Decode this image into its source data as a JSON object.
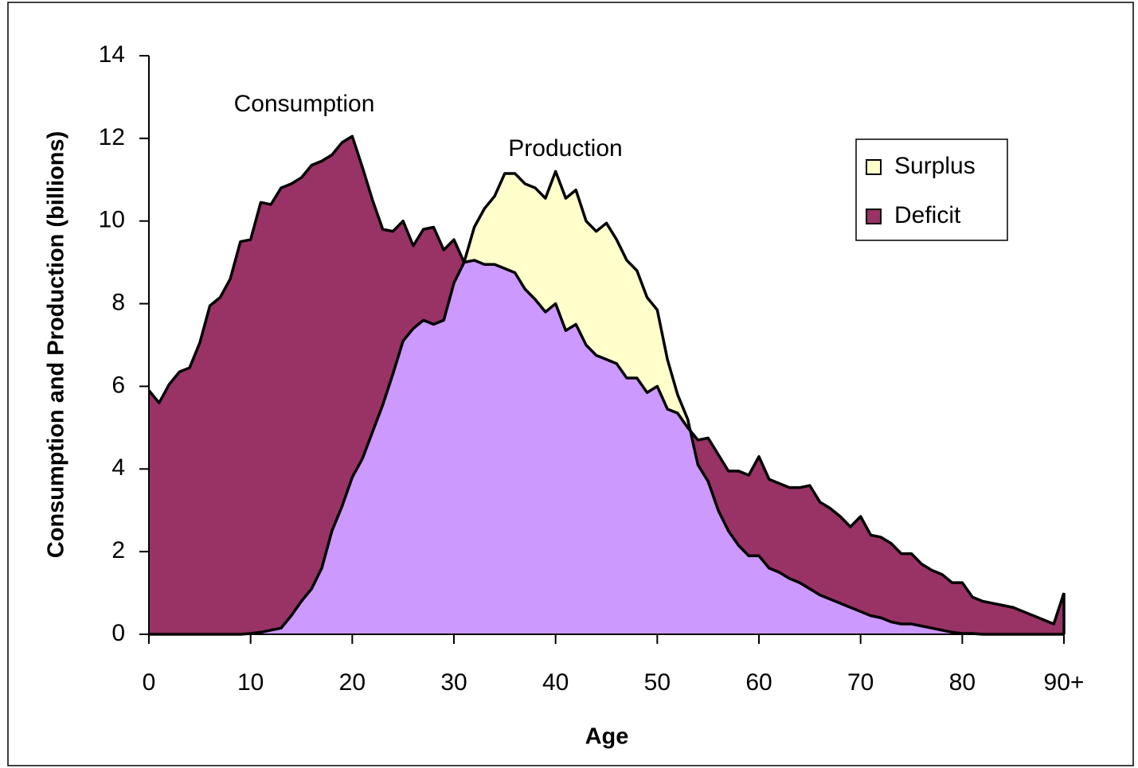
{
  "chart_data": {
    "type": "area",
    "x_label": "Age",
    "y_label": "Consumption and Production (billions)",
    "x": [
      0,
      1,
      2,
      3,
      4,
      5,
      6,
      7,
      8,
      9,
      10,
      11,
      12,
      13,
      14,
      15,
      16,
      17,
      18,
      19,
      20,
      21,
      22,
      23,
      24,
      25,
      26,
      27,
      28,
      29,
      30,
      31,
      32,
      33,
      34,
      35,
      36,
      37,
      38,
      39,
      40,
      41,
      42,
      43,
      44,
      45,
      46,
      47,
      48,
      49,
      50,
      51,
      52,
      53,
      54,
      55,
      56,
      57,
      58,
      59,
      60,
      61,
      62,
      63,
      64,
      65,
      66,
      67,
      68,
      69,
      70,
      71,
      72,
      73,
      74,
      75,
      76,
      77,
      78,
      79,
      80,
      81,
      82,
      83,
      84,
      85,
      86,
      87,
      88,
      89,
      90
    ],
    "series": [
      {
        "name": "Consumption",
        "color": "#000000",
        "values": [
          5.9,
          5.6,
          6.05,
          6.35,
          6.45,
          7.05,
          7.95,
          8.15,
          8.6,
          9.5,
          9.55,
          10.45,
          10.4,
          10.8,
          10.9,
          11.05,
          11.35,
          11.45,
          11.6,
          11.9,
          12.05,
          11.3,
          10.5,
          9.8,
          9.75,
          10.0,
          9.4,
          9.8,
          9.85,
          9.3,
          9.55,
          9.0,
          9.05,
          8.95,
          8.95,
          8.85,
          8.75,
          8.35,
          8.1,
          7.8,
          8.0,
          7.35,
          7.5,
          7.0,
          6.75,
          6.65,
          6.55,
          6.2,
          6.2,
          5.85,
          6.0,
          5.45,
          5.35,
          5.0,
          4.7,
          4.75,
          4.35,
          3.95,
          3.95,
          3.85,
          4.3,
          3.75,
          3.65,
          3.55,
          3.55,
          3.6,
          3.2,
          3.05,
          2.85,
          2.6,
          2.85,
          2.4,
          2.35,
          2.2,
          1.95,
          1.95,
          1.7,
          1.55,
          1.45,
          1.25,
          1.25,
          0.9,
          0.8,
          0.75,
          0.7,
          0.65,
          0.55,
          0.45,
          0.35,
          0.25,
          1.0
        ]
      },
      {
        "name": "Production",
        "color": "#000000",
        "values": [
          0,
          0,
          0,
          0,
          0,
          0,
          0,
          0,
          0,
          0,
          0.02,
          0.05,
          0.1,
          0.15,
          0.45,
          0.8,
          1.1,
          1.6,
          2.5,
          3.1,
          3.8,
          4.25,
          4.9,
          5.55,
          6.3,
          7.1,
          7.4,
          7.6,
          7.5,
          7.6,
          8.5,
          9.0,
          9.85,
          10.3,
          10.6,
          11.15,
          11.15,
          10.9,
          10.8,
          10.55,
          11.2,
          10.55,
          10.75,
          10.0,
          9.75,
          9.95,
          9.55,
          9.05,
          8.8,
          8.15,
          7.85,
          6.65,
          5.8,
          5.2,
          4.1,
          3.7,
          3.0,
          2.5,
          2.15,
          1.9,
          1.9,
          1.6,
          1.5,
          1.35,
          1.25,
          1.1,
          0.95,
          0.85,
          0.75,
          0.65,
          0.55,
          0.45,
          0.4,
          0.3,
          0.25,
          0.25,
          0.2,
          0.15,
          0.1,
          0.05,
          0.02,
          0.02,
          0,
          0,
          0,
          0,
          0,
          0,
          0,
          0,
          0
        ]
      }
    ],
    "legend": [
      {
        "name": "Surplus",
        "color": "#ffffcc"
      },
      {
        "name": "Deficit",
        "color": "#993366"
      }
    ],
    "below_color": "#cc99ff",
    "xlim": [
      0,
      90
    ],
    "xticks": [
      0,
      10,
      20,
      30,
      40,
      50,
      60,
      70,
      80,
      {
        "value": 90,
        "label": "90+"
      }
    ],
    "ylim": [
      0,
      14
    ],
    "yticks": [
      0,
      2,
      4,
      6,
      8,
      10,
      12,
      14
    ]
  }
}
